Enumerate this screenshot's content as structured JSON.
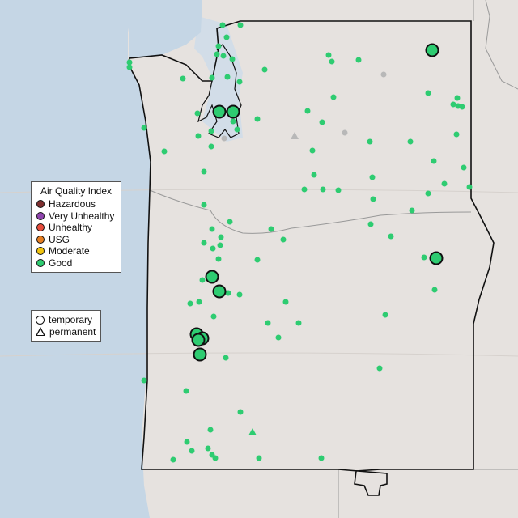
{
  "map": {
    "colors": {
      "ocean": "#c5d6e5",
      "land": "#e6e2df",
      "border": "#111111",
      "marker_good": "#2ecc71",
      "marker_inactive": "#b8b8b8"
    }
  },
  "legend_aqi": {
    "title": "Air Quality Index",
    "items": [
      {
        "label": "Hazardous",
        "color": "#7e2f2f"
      },
      {
        "label": "Very Unhealthy",
        "color": "#8e44ad"
      },
      {
        "label": "Unhealthy",
        "color": "#e74c3c"
      },
      {
        "label": "USG",
        "color": "#e67e22"
      },
      {
        "label": "Moderate",
        "color": "#f1c40f"
      },
      {
        "label": "Good",
        "color": "#2ecc71"
      }
    ]
  },
  "legend_type": {
    "items": [
      {
        "label": "temporary",
        "shape": "circle"
      },
      {
        "label": "permanent",
        "shape": "triangle"
      }
    ]
  }
}
